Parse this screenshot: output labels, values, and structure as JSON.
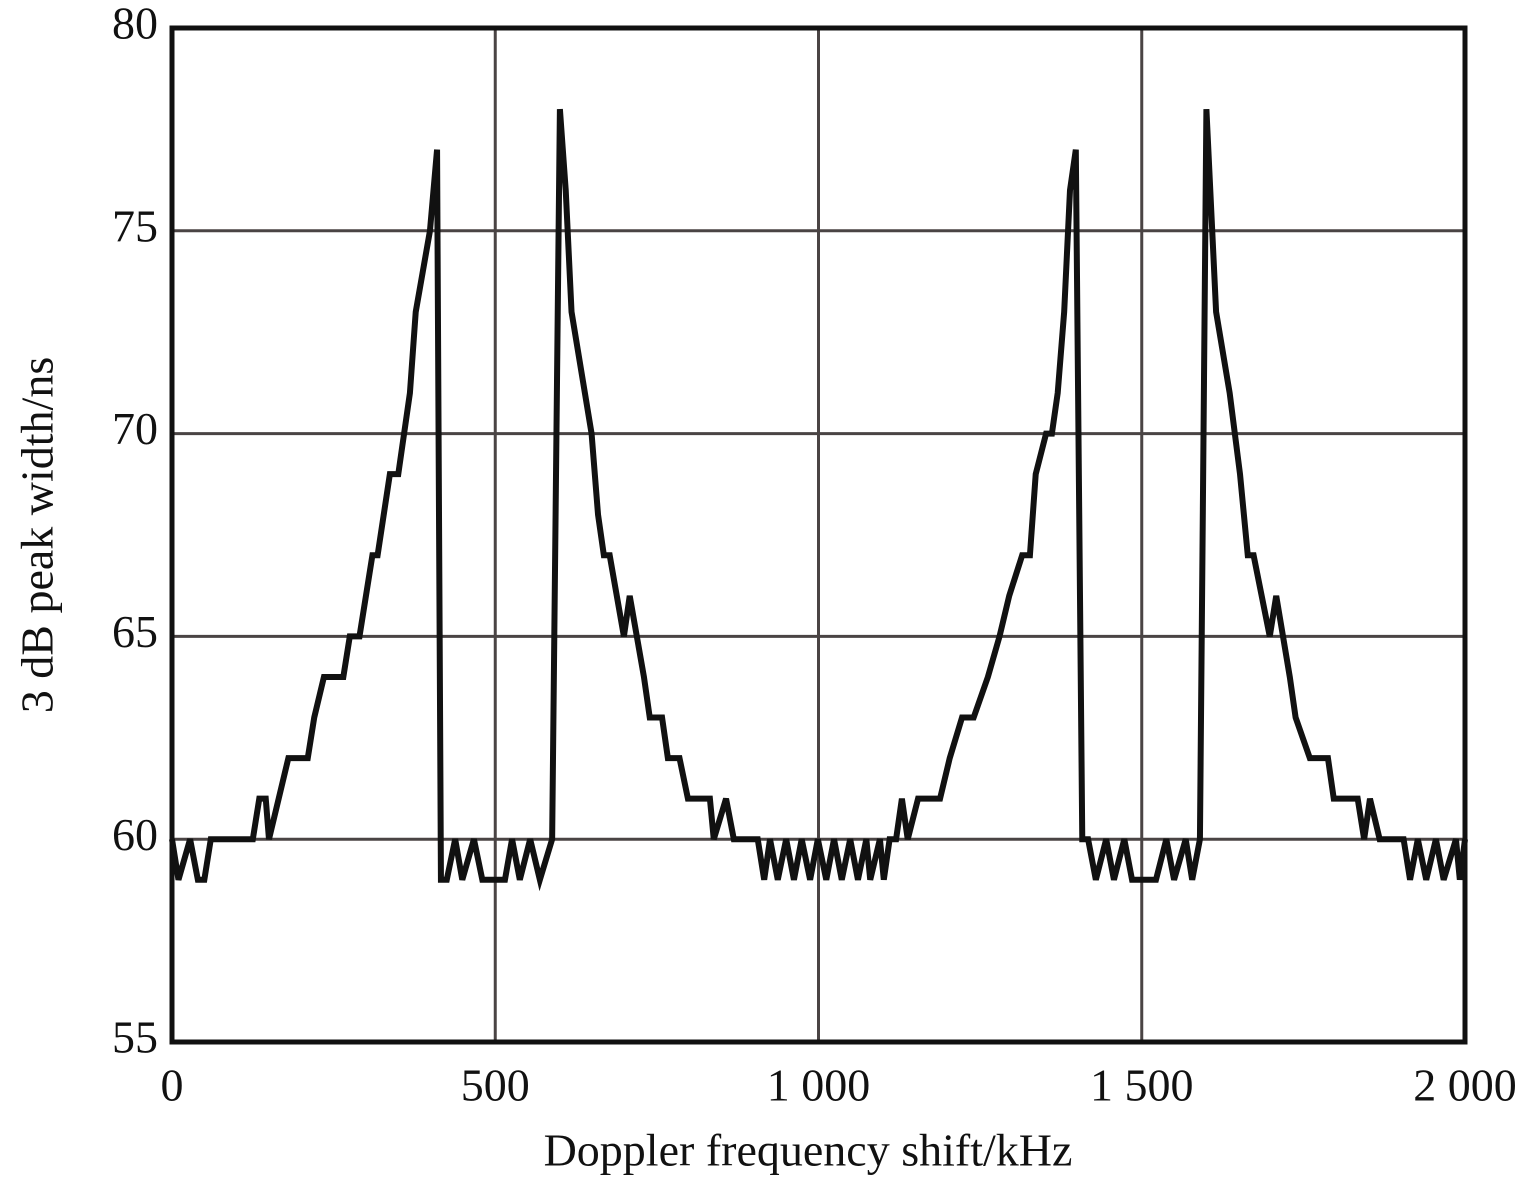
{
  "chart_data": {
    "type": "line",
    "x_label": "Doppler frequency shift/kHz",
    "y_label": "3 dB peak width/ns",
    "x": [
      0,
      10,
      28,
      40,
      50,
      60,
      125,
      135,
      145,
      150,
      165,
      180,
      210,
      220,
      235,
      265,
      275,
      290,
      310,
      318,
      337,
      350,
      368,
      377,
      399,
      410,
      416,
      425,
      438,
      449,
      467,
      480,
      515,
      526,
      538,
      554,
      569,
      588,
      600,
      609,
      618,
      649,
      659,
      668,
      677,
      699,
      708,
      730,
      739,
      758,
      767,
      785,
      798,
      832,
      838,
      857,
      869,
      906,
      916,
      925,
      937,
      950,
      962,
      974,
      987,
      999,
      1012,
      1024,
      1036,
      1049,
      1061,
      1074,
      1080,
      1095,
      1101,
      1110,
      1120,
      1129,
      1138,
      1154,
      1188,
      1203,
      1222,
      1240,
      1262,
      1280,
      1295,
      1315,
      1327,
      1336,
      1352,
      1361,
      1370,
      1380,
      1389,
      1398,
      1408,
      1417,
      1429,
      1445,
      1457,
      1473,
      1485,
      1522,
      1538,
      1550,
      1568,
      1578,
      1590,
      1600,
      1606,
      1615,
      1636,
      1652,
      1664,
      1673,
      1698,
      1708,
      1729,
      1738,
      1760,
      1788,
      1797,
      1834,
      1844,
      1853,
      1868,
      1905,
      1915,
      1927,
      1940,
      1955,
      1967,
      1986,
      1992,
      2000
    ],
    "values": [
      60,
      59,
      60,
      59,
      59,
      60,
      60,
      61,
      61,
      60,
      61,
      62,
      62,
      63,
      64,
      64,
      65,
      65,
      67,
      67,
      69,
      69,
      71,
      73,
      75,
      77,
      59,
      59,
      60,
      59,
      60,
      59,
      59,
      60,
      59,
      60,
      59,
      60,
      78,
      76,
      73,
      70,
      68,
      67,
      67,
      65,
      66,
      64,
      63,
      63,
      62,
      62,
      61,
      61,
      60,
      61,
      60,
      60,
      59,
      60,
      59,
      60,
      59,
      60,
      59,
      60,
      59,
      60,
      59,
      60,
      59,
      60,
      59,
      60,
      59,
      60,
      60,
      61,
      60,
      61,
      61,
      62,
      63,
      63,
      64,
      65,
      66,
      67,
      67,
      69,
      70,
      70,
      71,
      73,
      76,
      77,
      60,
      60,
      59,
      60,
      59,
      60,
      59,
      59,
      60,
      59,
      60,
      59,
      60,
      78,
      76,
      73,
      71,
      69,
      67,
      67,
      65,
      66,
      64,
      63,
      62,
      62,
      61,
      61,
      60,
      61,
      60,
      60,
      59,
      60,
      59,
      60,
      59,
      60,
      59,
      60
    ],
    "color": "#111111",
    "xlim": [
      0,
      2000
    ],
    "xticks": [
      0,
      500,
      {
        "value": 1000,
        "label": "1 000"
      },
      {
        "value": 1500,
        "label": "1 500"
      },
      {
        "value": 2000,
        "label": "2 000"
      }
    ],
    "ylim": [
      55,
      80
    ],
    "yticks": [
      55,
      60,
      65,
      70,
      75,
      80
    ],
    "grid": true
  }
}
